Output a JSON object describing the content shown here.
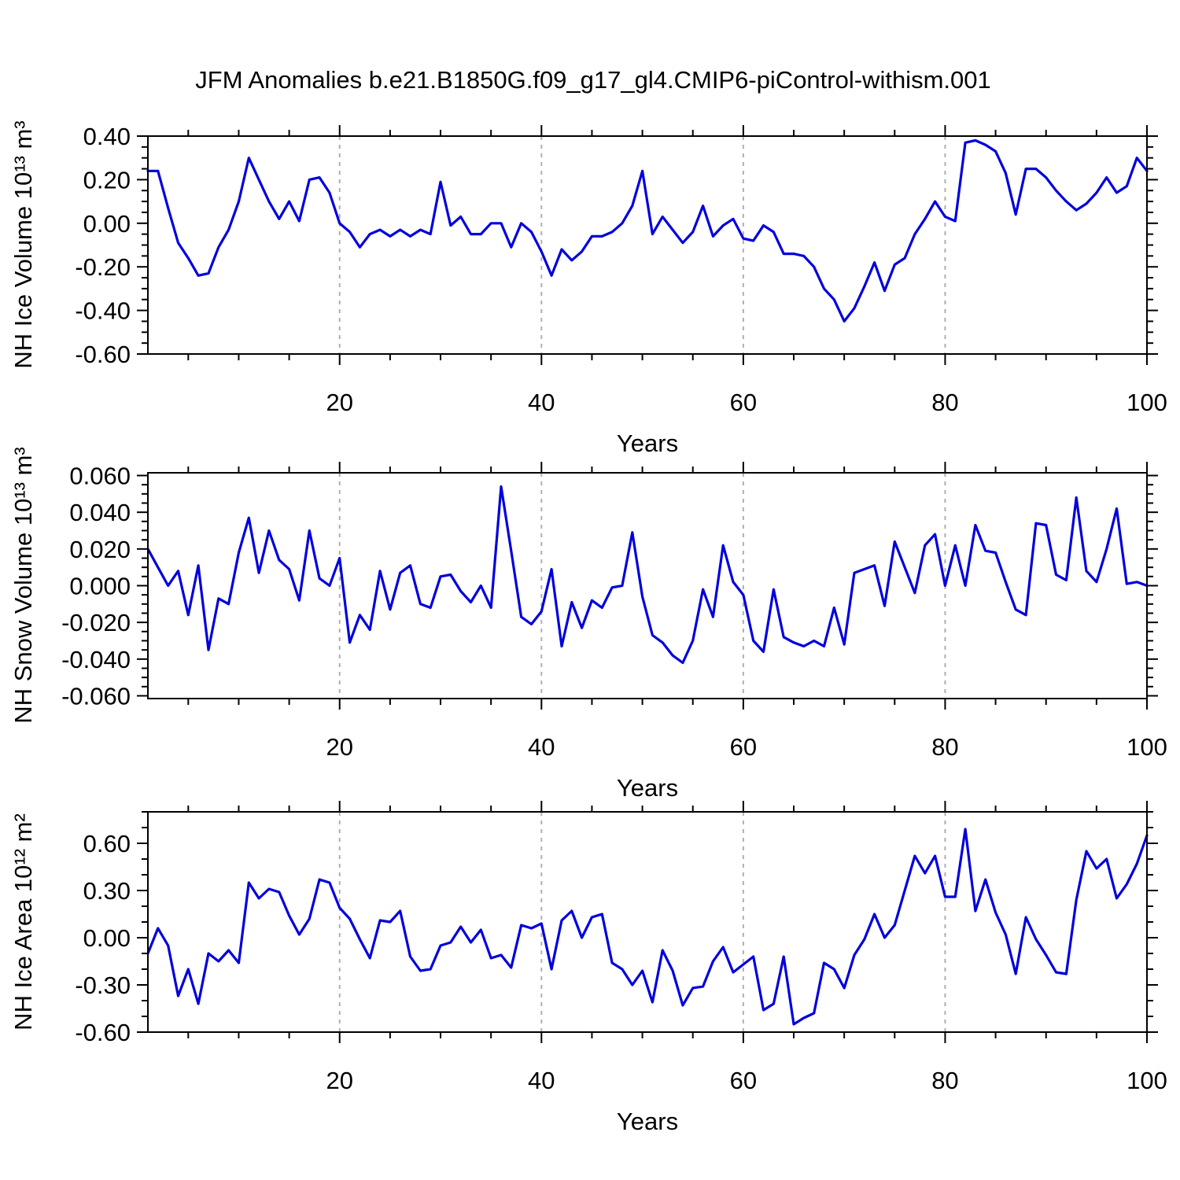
{
  "title": "JFM Anomalies b.e21.B1850G.f09_g17_gl4.CMIP6-piControl-withism.001",
  "colors": {
    "line": "#0000dd",
    "grid": "#b0b0b0",
    "axis": "#000000",
    "background": "#ffffff"
  },
  "x_axis": {
    "label": "Years",
    "range": [
      1,
      100
    ],
    "major_ticks": [
      20,
      40,
      60,
      80,
      100
    ],
    "major_tick_labels": [
      "20",
      "40",
      "60",
      "80",
      "100"
    ],
    "minor_step": 5,
    "gridlines": [
      20,
      40,
      60,
      80
    ]
  },
  "chart_data": [
    {
      "type": "line",
      "title": "",
      "ylabel": "NH Ice Volume 10¹³ m³",
      "xlabel": "Years",
      "ylim": [
        -0.6,
        0.4
      ],
      "yticks": [
        0.4,
        0.2,
        0.0,
        -0.2,
        -0.4,
        -0.6
      ],
      "ytick_labels": [
        "0.40",
        "0.20",
        "0.00",
        "-0.20",
        "-0.40",
        "-0.60"
      ],
      "yminor_step": 0.05,
      "grid": "vertical-dashed",
      "legend": "none",
      "x_start_year": 1,
      "values": [
        0.24,
        0.24,
        0.07,
        -0.09,
        -0.16,
        -0.24,
        -0.23,
        -0.11,
        -0.03,
        0.1,
        0.3,
        0.2,
        0.1,
        0.02,
        0.1,
        0.01,
        0.2,
        0.21,
        0.14,
        0.0,
        -0.04,
        -0.11,
        -0.05,
        -0.03,
        -0.06,
        -0.03,
        -0.06,
        -0.03,
        -0.05,
        0.19,
        -0.01,
        0.03,
        -0.05,
        -0.05,
        0.0,
        0.0,
        -0.11,
        0.0,
        -0.04,
        -0.13,
        -0.24,
        -0.12,
        -0.17,
        -0.13,
        -0.06,
        -0.06,
        -0.04,
        0.0,
        0.08,
        0.24,
        -0.05,
        0.03,
        -0.03,
        -0.09,
        -0.04,
        0.08,
        -0.06,
        -0.01,
        0.02,
        -0.07,
        -0.08,
        -0.01,
        -0.04,
        -0.14,
        -0.14,
        -0.15,
        -0.2,
        -0.3,
        -0.35,
        -0.45,
        -0.39,
        -0.29,
        -0.18,
        -0.31,
        -0.19,
        -0.16,
        -0.05,
        0.02,
        0.1,
        0.03,
        0.01,
        0.37,
        0.38,
        0.36,
        0.33,
        0.23,
        0.04,
        0.25,
        0.25,
        0.21,
        0.15,
        0.1,
        0.06,
        0.09,
        0.14,
        0.21,
        0.14,
        0.17,
        0.3,
        0.24
      ]
    },
    {
      "type": "line",
      "title": "",
      "ylabel": "NH Snow Volume 10¹³ m³",
      "xlabel": "Years",
      "ylim": [
        -0.0615,
        0.0615
      ],
      "yticks": [
        0.06,
        0.04,
        0.02,
        0.0,
        -0.02,
        -0.04,
        -0.06
      ],
      "ytick_labels": [
        "0.060",
        "0.040",
        "0.020",
        "0.000",
        "-0.020",
        "-0.040",
        "-0.060"
      ],
      "yminor_step": 0.005,
      "grid": "vertical-dashed",
      "legend": "none",
      "x_start_year": 1,
      "values": [
        0.02,
        0.01,
        0.0,
        0.008,
        -0.016,
        0.011,
        -0.035,
        -0.007,
        -0.01,
        0.018,
        0.037,
        0.007,
        0.03,
        0.014,
        0.009,
        -0.008,
        0.03,
        0.004,
        0.0,
        0.015,
        -0.031,
        -0.016,
        -0.024,
        0.008,
        -0.013,
        0.007,
        0.011,
        -0.01,
        -0.012,
        0.005,
        0.006,
        -0.003,
        -0.009,
        0.0,
        -0.012,
        0.054,
        0.019,
        -0.017,
        -0.021,
        -0.014,
        0.009,
        -0.033,
        -0.009,
        -0.023,
        -0.008,
        -0.012,
        -0.001,
        0.0,
        0.029,
        -0.006,
        -0.027,
        -0.031,
        -0.038,
        -0.042,
        -0.03,
        -0.002,
        -0.017,
        0.022,
        0.002,
        -0.005,
        -0.03,
        -0.036,
        -0.002,
        -0.028,
        -0.031,
        -0.033,
        -0.03,
        -0.033,
        -0.012,
        -0.032,
        0.007,
        0.009,
        0.011,
        -0.011,
        0.024,
        0.01,
        -0.004,
        0.022,
        0.028,
        0.0,
        0.022,
        0.0,
        0.033,
        0.019,
        0.018,
        0.002,
        -0.013,
        -0.016,
        0.034,
        0.033,
        0.006,
        0.003,
        0.048,
        0.008,
        0.002,
        0.02,
        0.042,
        0.001,
        0.002,
        0.0
      ]
    },
    {
      "type": "line",
      "title": "",
      "ylabel": "NH Ice Area 10¹² m²",
      "xlabel": "Years",
      "ylim": [
        -0.6,
        0.8
      ],
      "yticks": [
        0.6,
        0.3,
        0.0,
        -0.3,
        -0.6
      ],
      "ytick_labels": [
        "0.60",
        "0.30",
        "0.00",
        "-0.30",
        "-0.60"
      ],
      "yminor_step": 0.1,
      "grid": "vertical-dashed",
      "legend": "none",
      "x_start_year": 1,
      "values": [
        -0.1,
        0.06,
        -0.05,
        -0.37,
        -0.2,
        -0.42,
        -0.1,
        -0.15,
        -0.08,
        -0.16,
        0.35,
        0.25,
        0.31,
        0.29,
        0.14,
        0.02,
        0.12,
        0.37,
        0.35,
        0.19,
        0.12,
        -0.01,
        -0.13,
        0.11,
        0.1,
        0.17,
        -0.12,
        -0.21,
        -0.2,
        -0.05,
        -0.03,
        0.07,
        -0.03,
        0.05,
        -0.13,
        -0.11,
        -0.19,
        0.08,
        0.06,
        0.09,
        -0.2,
        0.11,
        0.17,
        0.0,
        0.13,
        0.15,
        -0.16,
        -0.2,
        -0.3,
        -0.21,
        -0.41,
        -0.08,
        -0.21,
        -0.43,
        -0.32,
        -0.31,
        -0.15,
        -0.06,
        -0.22,
        -0.17,
        -0.12,
        -0.46,
        -0.42,
        -0.12,
        -0.55,
        -0.51,
        -0.48,
        -0.16,
        -0.2,
        -0.32,
        -0.11,
        -0.01,
        0.15,
        0.0,
        0.08,
        0.3,
        0.52,
        0.41,
        0.52,
        0.26,
        0.26,
        0.69,
        0.17,
        0.37,
        0.16,
        0.02,
        -0.23,
        0.13,
        -0.01,
        -0.11,
        -0.22,
        -0.23,
        0.24,
        0.55,
        0.44,
        0.5,
        0.25,
        0.34,
        0.47,
        0.65
      ]
    }
  ]
}
